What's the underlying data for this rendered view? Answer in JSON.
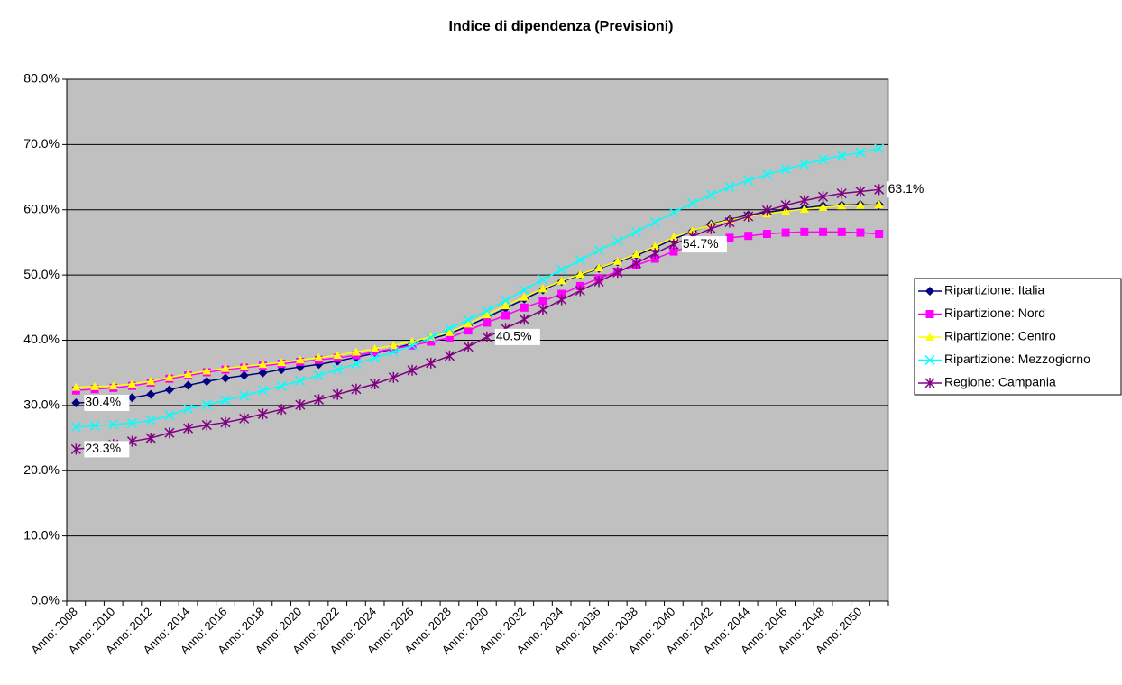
{
  "chart_data": {
    "type": "line",
    "title": "Indice di dipendenza (Previsioni)",
    "categories": [
      "Anno: 2008",
      null,
      "Anno: 2010",
      null,
      "Anno: 2012",
      null,
      "Anno: 2014",
      null,
      "Anno: 2016",
      null,
      "Anno: 2018",
      null,
      "Anno: 2020",
      null,
      "Anno: 2022",
      null,
      "Anno: 2024",
      null,
      "Anno: 2026",
      null,
      "Anno: 2028",
      null,
      "Anno: 2030",
      null,
      "Anno: 2032",
      null,
      "Anno: 2034",
      null,
      "Anno: 2036",
      null,
      "Anno: 2038",
      null,
      "Anno: 2040",
      null,
      "Anno: 2042",
      null,
      "Anno: 2044",
      null,
      "Anno: 2046",
      null,
      "Anno: 2048",
      null,
      "Anno: 2050",
      null
    ],
    "series": [
      {
        "name": "Ripartizione: Italia",
        "color": "#000080",
        "marker": "diamond",
        "values": [
          30.4,
          30.5,
          30.8,
          31.2,
          31.7,
          32.4,
          33.1,
          33.7,
          34.2,
          34.6,
          35.0,
          35.5,
          35.9,
          36.3,
          36.8,
          37.4,
          38.0,
          38.7,
          39.5,
          40.2,
          41.0,
          42.2,
          43.5,
          44.9,
          46.3,
          47.7,
          49.0,
          50.0,
          51.0,
          52.0,
          53.0,
          54.2,
          55.5,
          56.7,
          57.8,
          58.5,
          59.2,
          59.6,
          60.0,
          60.3,
          60.6,
          60.7,
          60.8,
          60.8
        ],
        "value_labels": [
          "30.4%",
          null,
          null,
          null,
          null,
          null,
          null,
          null,
          null,
          null,
          null,
          null,
          null,
          null,
          null,
          null,
          null,
          null,
          null,
          null,
          null,
          null,
          null,
          null,
          null,
          null,
          null,
          null,
          null,
          null,
          null,
          null,
          null,
          null,
          null,
          null,
          null,
          null,
          null,
          null,
          null,
          null,
          null,
          null
        ]
      },
      {
        "name": "Ripartizione: Nord",
        "color": "#ff00ff",
        "marker": "square",
        "values": [
          32.3,
          32.5,
          32.7,
          33.0,
          33.5,
          34.1,
          34.6,
          35.1,
          35.5,
          35.8,
          36.1,
          36.4,
          36.7,
          37.0,
          37.3,
          37.7,
          38.2,
          38.7,
          39.2,
          39.8,
          40.4,
          41.5,
          42.7,
          43.8,
          45.0,
          46.0,
          47.1,
          48.3,
          49.5,
          50.5,
          51.5,
          52.5,
          53.6,
          54.5,
          55.2,
          55.7,
          56.0,
          56.3,
          56.5,
          56.6,
          56.6,
          56.6,
          56.5,
          56.3
        ]
      },
      {
        "name": "Ripartizione: Centro",
        "color": "#ffff00",
        "marker": "triangle",
        "values": [
          32.8,
          32.9,
          33.0,
          33.3,
          33.7,
          34.3,
          34.8,
          35.3,
          35.7,
          36.0,
          36.3,
          36.6,
          37.0,
          37.3,
          37.7,
          38.2,
          38.7,
          39.2,
          39.8,
          40.5,
          41.2,
          42.5,
          43.9,
          45.3,
          46.6,
          47.9,
          49.1,
          50.1,
          51.1,
          52.1,
          53.2,
          54.4,
          55.8,
          56.8,
          57.7,
          58.4,
          59.0,
          59.4,
          59.8,
          60.1,
          60.4,
          60.6,
          60.7,
          60.8
        ]
      },
      {
        "name": "Ripartizione: Mezzogiorno",
        "color": "#00ffff",
        "marker": "x",
        "values": [
          26.7,
          26.9,
          27.1,
          27.3,
          27.7,
          28.5,
          29.5,
          30.1,
          30.8,
          31.5,
          32.3,
          33.0,
          33.8,
          34.6,
          35.5,
          36.4,
          37.3,
          38.2,
          39.2,
          40.4,
          41.8,
          43.1,
          44.5,
          46.1,
          47.7,
          49.3,
          50.8,
          52.3,
          53.8,
          55.2,
          56.6,
          58.1,
          59.6,
          61.0,
          62.3,
          63.5,
          64.5,
          65.4,
          66.2,
          67.0,
          67.7,
          68.3,
          68.8,
          69.4
        ]
      },
      {
        "name": "Regione: Campania",
        "color": "#800080",
        "marker": "asterisk",
        "values": [
          23.3,
          23.6,
          24.0,
          24.5,
          25.0,
          25.8,
          26.5,
          27.0,
          27.4,
          28.0,
          28.7,
          29.4,
          30.1,
          30.9,
          31.7,
          32.5,
          33.3,
          34.3,
          35.4,
          36.5,
          37.6,
          39.0,
          40.5,
          41.8,
          43.2,
          44.7,
          46.2,
          47.6,
          49.0,
          50.4,
          51.8,
          53.3,
          54.7,
          55.9,
          57.1,
          58.1,
          59.0,
          59.9,
          60.7,
          61.4,
          62.0,
          62.5,
          62.8,
          63.1
        ],
        "value_labels": [
          "23.3%",
          null,
          null,
          null,
          null,
          null,
          null,
          null,
          null,
          null,
          null,
          null,
          null,
          null,
          null,
          null,
          null,
          null,
          null,
          null,
          null,
          null,
          "40.5%",
          null,
          null,
          null,
          null,
          null,
          null,
          null,
          null,
          null,
          "54.7%",
          null,
          null,
          null,
          null,
          null,
          null,
          null,
          null,
          null,
          null,
          "63.1%"
        ]
      }
    ],
    "ylim": [
      0,
      80
    ],
    "yticks": [
      {
        "value": 0,
        "label": "0.0%"
      },
      {
        "value": 10,
        "label": "10.0%"
      },
      {
        "value": 20,
        "label": "20.0%"
      },
      {
        "value": 30,
        "label": "30.0%"
      },
      {
        "value": 40,
        "label": "40.0%"
      },
      {
        "value": 50,
        "label": "50.0%"
      },
      {
        "value": 60,
        "label": "60.0%"
      },
      {
        "value": 70,
        "label": "70.0%"
      },
      {
        "value": 80,
        "label": "80.0%"
      }
    ],
    "grid": true,
    "plot_background": "#c0c0c0",
    "legend": "right"
  }
}
